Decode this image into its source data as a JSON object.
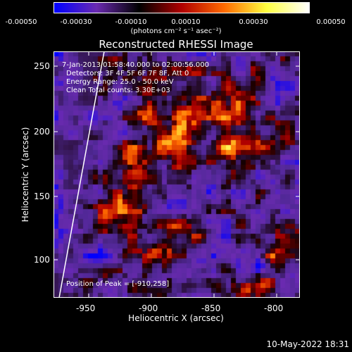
{
  "colorbar": {
    "ticks": [
      "-0.00050",
      "-0.00030",
      "-0.00010",
      "0.00010",
      "0.00030",
      "0.00050"
    ],
    "units_label": "(photons cm⁻² s⁻¹ asec⁻²)",
    "colors": [
      "#0000ff",
      "#6a2ab0",
      "#000000",
      "#b00000",
      "#ff6a00",
      "#ffff40",
      "#ffffff"
    ]
  },
  "title": "Reconstructed RHESSI Image",
  "annotations": {
    "time_range": "7-Jan-2013 01:58:40.000 to 02:00:56.000",
    "detectors": "Detectors: 3F 4F 5F 6F 7F 8F, Att 0",
    "energy": "Energy Range: 25.0 - 50.0 keV",
    "clean": "Clean    Total counts: 3.30E+03",
    "peak": "Position of Peak = [-910,258]"
  },
  "axes": {
    "x_label": "Heliocentric X (arcsec)",
    "y_label": "Heliocentric Y (arcsec)",
    "x_ticks": [
      "-950",
      "-900",
      "-850",
      "-800"
    ],
    "y_ticks": [
      "250",
      "200",
      "150",
      "100"
    ]
  },
  "footer_date": "10-May-2022 18:31"
}
